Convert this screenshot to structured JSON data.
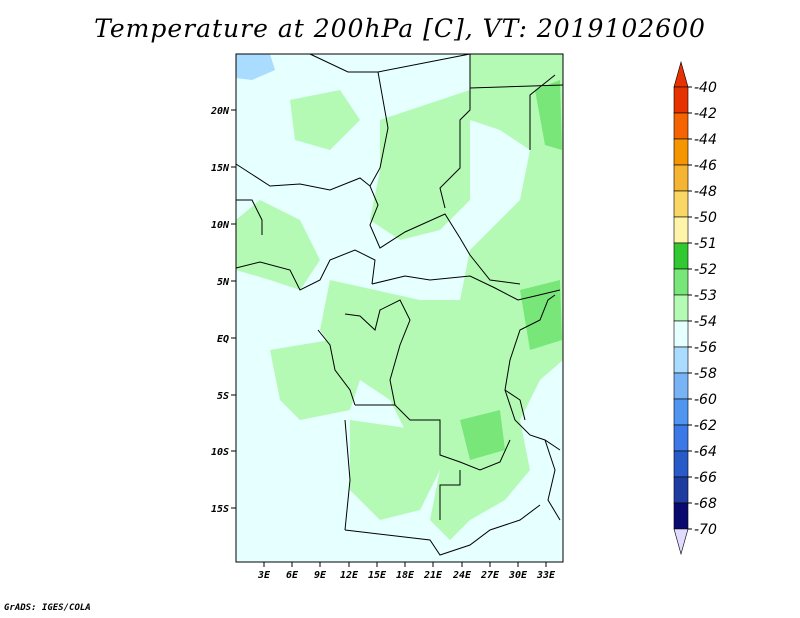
{
  "title": "Temperature at 200hPa [C], VT: 2019102600",
  "credit": "GrADS: IGES/COLA",
  "map": {
    "lat_labels": [
      "20N",
      "15N",
      "10N",
      "5N",
      "EQ",
      "5S",
      "10S",
      "15S"
    ],
    "lon_labels": [
      "3E",
      "6E",
      "9E",
      "12E",
      "15E",
      "18E",
      "21E",
      "24E",
      "27E",
      "30E",
      "33E"
    ]
  },
  "colorbar": {
    "labels": [
      "-40",
      "-42",
      "-44",
      "-46",
      "-48",
      "-50",
      "-51",
      "-52",
      "-53",
      "-54",
      "-56",
      "-58",
      "-60",
      "-62",
      "-64",
      "-66",
      "-68",
      "-70"
    ],
    "colors": [
      "#ffffff",
      "#e63200",
      "#f56400",
      "#f59600",
      "#f5b432",
      "#fad764",
      "#fff5aa",
      "#32c832",
      "#78e678",
      "#b4fab4",
      "#e6ffff",
      "#aadcff",
      "#78b4f5",
      "#5096f0",
      "#3c78e6",
      "#285ac8",
      "#1e3ca0",
      "#0a0a6e",
      "#e1dcff"
    ]
  }
}
